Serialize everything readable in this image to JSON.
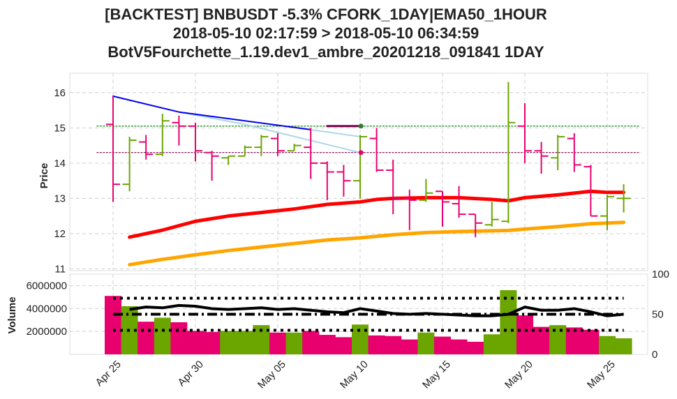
{
  "chart_data": {
    "type": "candlestick",
    "title_lines": [
      "[BACKTEST] BNBUSDT -5.3% CFORK_1DAY|EMA50_1HOUR",
      "2018-05-10 02:17:59 > 2018-05-10 06:34:59",
      "BotV5Fourchette_1.19.dev1_ambre_20201218_091841 1DAY"
    ],
    "price_axis": {
      "label": "Price",
      "ylim": [
        10.95,
        16.55
      ],
      "ticks": [
        "11",
        "12",
        "13",
        "14",
        "15",
        "16"
      ]
    },
    "volume_axis": {
      "label": "Volume",
      "ylim": [
        0,
        7000000
      ],
      "ticks": [
        "2000000",
        "4000000",
        "6000000"
      ]
    },
    "rsi_axis": {
      "ylim": [
        0,
        100
      ],
      "ticks": [
        "0",
        "50",
        "100"
      ]
    },
    "x_axis": {
      "ticks": [
        {
          "day": 1,
          "label": "Apr 25"
        },
        {
          "day": 6,
          "label": "Apr 30"
        },
        {
          "day": 11,
          "label": "May 05"
        },
        {
          "day": 16,
          "label": "May 10"
        },
        {
          "day": 21,
          "label": "May 15"
        },
        {
          "day": 26,
          "label": "May 20"
        },
        {
          "day": 31,
          "label": "May 25"
        }
      ]
    },
    "colors": {
      "up": "#6aa500",
      "down": "#e8006e",
      "ema_fast": "#ff0000",
      "ema_slow": "#ffa500",
      "trend_dark": "#0000ee",
      "trend_light": "#add8e6",
      "level_green": "#007700",
      "level_purple": "#7a004f",
      "rsi": "#000000"
    },
    "candles": [
      {
        "day": 1,
        "open": 15.1,
        "high": 15.9,
        "low": 12.9,
        "close": 13.4,
        "volume": 5100000
      },
      {
        "day": 2,
        "open": 13.4,
        "high": 14.75,
        "low": 13.2,
        "close": 14.65,
        "volume": 4200000
      },
      {
        "day": 3,
        "open": 14.6,
        "high": 14.8,
        "low": 14.1,
        "close": 14.25,
        "volume": 2850000
      },
      {
        "day": 4,
        "open": 14.25,
        "high": 15.4,
        "low": 14.2,
        "close": 15.2,
        "volume": 3200000
      },
      {
        "day": 5,
        "open": 15.15,
        "high": 15.35,
        "low": 14.5,
        "close": 15.05,
        "volume": 2800000
      },
      {
        "day": 6,
        "open": 15.05,
        "high": 15.15,
        "low": 14.05,
        "close": 14.35,
        "volume": 2050000
      },
      {
        "day": 7,
        "open": 14.3,
        "high": 14.35,
        "low": 13.5,
        "close": 14.2,
        "volume": 1950000
      },
      {
        "day": 8,
        "open": 14.15,
        "high": 14.2,
        "low": 13.95,
        "close": 14.2,
        "volume": 2050000
      },
      {
        "day": 9,
        "open": 14.2,
        "high": 14.5,
        "low": 14.2,
        "close": 14.45,
        "volume": 2050000
      },
      {
        "day": 10,
        "open": 14.45,
        "high": 14.8,
        "low": 14.2,
        "close": 14.75,
        "volume": 2550000
      },
      {
        "day": 11,
        "open": 14.7,
        "high": 14.85,
        "low": 14.2,
        "close": 14.35,
        "volume": 1900000
      },
      {
        "day": 12,
        "open": 14.35,
        "high": 14.55,
        "low": 14.35,
        "close": 14.5,
        "volume": 1900000
      },
      {
        "day": 13,
        "open": 14.45,
        "high": 15.0,
        "low": 13.55,
        "close": 14.0,
        "volume": 2050000
      },
      {
        "day": 14,
        "open": 14.0,
        "high": 14.05,
        "low": 12.95,
        "close": 13.75,
        "volume": 1700000
      },
      {
        "day": 15,
        "open": 13.75,
        "high": 13.95,
        "low": 13.05,
        "close": 13.5,
        "volume": 1500000
      },
      {
        "day": 16,
        "open": 13.5,
        "high": 14.8,
        "low": 13.0,
        "close": 14.75,
        "volume": 2600000
      },
      {
        "day": 17,
        "open": 14.7,
        "high": 15.0,
        "low": 13.75,
        "close": 13.8,
        "volume": 1650000
      },
      {
        "day": 18,
        "open": 13.8,
        "high": 14.1,
        "low": 12.55,
        "close": 13.0,
        "volume": 1600000
      },
      {
        "day": 19,
        "open": 13.0,
        "high": 13.25,
        "low": 12.1,
        "close": 12.95,
        "volume": 1300000
      },
      {
        "day": 20,
        "open": 12.95,
        "high": 13.55,
        "low": 12.9,
        "close": 13.15,
        "volume": 1900000
      },
      {
        "day": 21,
        "open": 13.2,
        "high": 13.2,
        "low": 12.2,
        "close": 12.9,
        "volume": 1550000
      },
      {
        "day": 22,
        "open": 12.85,
        "high": 13.35,
        "low": 12.45,
        "close": 12.55,
        "volume": 1300000
      },
      {
        "day": 23,
        "open": 12.55,
        "high": 12.55,
        "low": 11.9,
        "close": 12.3,
        "volume": 1100000
      },
      {
        "day": 24,
        "open": 12.25,
        "high": 12.9,
        "low": 12.2,
        "close": 12.4,
        "volume": 1750000
      },
      {
        "day": 25,
        "open": 12.35,
        "high": 16.3,
        "low": 12.3,
        "close": 15.15,
        "volume": 5600000
      },
      {
        "day": 26,
        "open": 15.05,
        "high": 15.7,
        "low": 14.0,
        "close": 14.35,
        "volume": 3400000
      },
      {
        "day": 27,
        "open": 14.35,
        "high": 14.6,
        "low": 13.7,
        "close": 14.2,
        "volume": 2400000
      },
      {
        "day": 28,
        "open": 14.15,
        "high": 14.8,
        "low": 13.8,
        "close": 14.75,
        "volume": 2550000
      },
      {
        "day": 29,
        "open": 14.7,
        "high": 14.85,
        "low": 13.75,
        "close": 13.95,
        "volume": 2350000
      },
      {
        "day": 30,
        "open": 13.9,
        "high": 13.95,
        "low": 12.5,
        "close": 12.5,
        "volume": 2150000
      },
      {
        "day": 31,
        "open": 12.5,
        "high": 13.1,
        "low": 12.1,
        "close": 13.05,
        "volume": 1600000
      },
      {
        "day": 32,
        "open": 13.0,
        "high": 13.4,
        "low": 12.6,
        "close": 13.0,
        "volume": 1400000
      }
    ],
    "ema_fast": [
      {
        "day": 2,
        "value": 11.9
      },
      {
        "day": 4,
        "value": 12.1
      },
      {
        "day": 6,
        "value": 12.35
      },
      {
        "day": 8,
        "value": 12.5
      },
      {
        "day": 10,
        "value": 12.6
      },
      {
        "day": 12,
        "value": 12.7
      },
      {
        "day": 14,
        "value": 12.83
      },
      {
        "day": 16,
        "value": 12.9
      },
      {
        "day": 17,
        "value": 12.97
      },
      {
        "day": 18,
        "value": 13.0
      },
      {
        "day": 20,
        "value": 13.02
      },
      {
        "day": 22,
        "value": 13.02
      },
      {
        "day": 24,
        "value": 12.97
      },
      {
        "day": 25,
        "value": 12.93
      },
      {
        "day": 26,
        "value": 13.02
      },
      {
        "day": 28,
        "value": 13.1
      },
      {
        "day": 30,
        "value": 13.2
      },
      {
        "day": 31,
        "value": 13.17
      },
      {
        "day": 32,
        "value": 13.17
      }
    ],
    "ema_slow": [
      {
        "day": 2,
        "value": 11.12
      },
      {
        "day": 4,
        "value": 11.27
      },
      {
        "day": 6,
        "value": 11.4
      },
      {
        "day": 8,
        "value": 11.52
      },
      {
        "day": 10,
        "value": 11.62
      },
      {
        "day": 12,
        "value": 11.72
      },
      {
        "day": 14,
        "value": 11.82
      },
      {
        "day": 16,
        "value": 11.88
      },
      {
        "day": 18,
        "value": 11.97
      },
      {
        "day": 20,
        "value": 12.03
      },
      {
        "day": 22,
        "value": 12.06
      },
      {
        "day": 24,
        "value": 12.08
      },
      {
        "day": 25,
        "value": 12.09
      },
      {
        "day": 26,
        "value": 12.13
      },
      {
        "day": 28,
        "value": 12.2
      },
      {
        "day": 30,
        "value": 12.28
      },
      {
        "day": 32,
        "value": 12.32
      }
    ],
    "trend_dark": [
      {
        "day": 1,
        "value": 15.9
      },
      {
        "day": 5,
        "value": 15.45
      },
      {
        "day": 13,
        "value": 14.95
      }
    ],
    "trend_dark_tail": [
      {
        "day": 13,
        "value": 14.95
      },
      {
        "day": 16,
        "value": 14.75
      }
    ],
    "trend_light": [
      {
        "day": 5,
        "value": 15.45
      },
      {
        "day": 9,
        "value": 15.1
      },
      {
        "day": 16,
        "value": 14.3
      }
    ],
    "trend_short": [
      {
        "day": 14,
        "value": 15.05
      },
      {
        "day": 16,
        "value": 15.05
      }
    ],
    "level_upper": {
      "value": 15.05,
      "from_day": 0,
      "to_day": 33
    },
    "level_lower": {
      "value": 14.3,
      "from_day": 0,
      "to_day": 33
    },
    "markers": [
      {
        "day": 16.05,
        "value": 15.05,
        "color": "#2e7d32"
      },
      {
        "day": 16.05,
        "value": 14.3,
        "color": "#e8006e"
      }
    ],
    "rsi": [
      {
        "day": 2,
        "value": 56
      },
      {
        "day": 3,
        "value": 59
      },
      {
        "day": 4,
        "value": 58
      },
      {
        "day": 5,
        "value": 61
      },
      {
        "day": 6,
        "value": 60
      },
      {
        "day": 7,
        "value": 57
      },
      {
        "day": 8,
        "value": 56
      },
      {
        "day": 9,
        "value": 57
      },
      {
        "day": 10,
        "value": 58
      },
      {
        "day": 11,
        "value": 56
      },
      {
        "day": 12,
        "value": 57
      },
      {
        "day": 13,
        "value": 55
      },
      {
        "day": 14,
        "value": 53
      },
      {
        "day": 15,
        "value": 52
      },
      {
        "day": 16,
        "value": 57
      },
      {
        "day": 17,
        "value": 54
      },
      {
        "day": 18,
        "value": 51
      },
      {
        "day": 19,
        "value": 50
      },
      {
        "day": 20,
        "value": 51
      },
      {
        "day": 21,
        "value": 50
      },
      {
        "day": 22,
        "value": 49
      },
      {
        "day": 23,
        "value": 48
      },
      {
        "day": 24,
        "value": 48
      },
      {
        "day": 25,
        "value": 50
      },
      {
        "day": 26,
        "value": 59
      },
      {
        "day": 27,
        "value": 55
      },
      {
        "day": 28,
        "value": 55
      },
      {
        "day": 29,
        "value": 57
      },
      {
        "day": 30,
        "value": 53
      },
      {
        "day": 31,
        "value": 48
      },
      {
        "day": 32,
        "value": 50
      }
    ],
    "rsi_levels": [
      {
        "value": 70,
        "style": "dotted"
      },
      {
        "value": 50,
        "style": "dashdot"
      },
      {
        "value": 30,
        "style": "dotted"
      }
    ]
  }
}
